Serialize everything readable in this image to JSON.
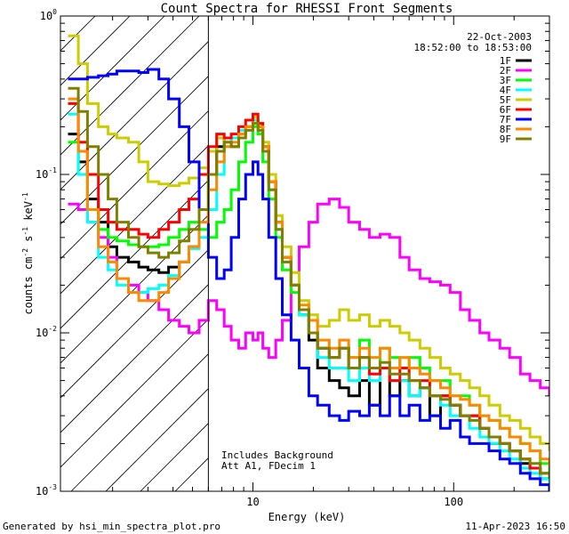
{
  "chart_data": {
    "type": "line",
    "title": "Count Spectra for RHESSI Front Segments",
    "xlabel": "Energy (keV)",
    "ylabel_parts": [
      "counts cm",
      "-2",
      " s",
      "-1",
      " keV",
      "-1"
    ],
    "xscale": "log",
    "yscale": "log",
    "xlim": [
      1.1,
      300
    ],
    "ylim": [
      0.001,
      1.0
    ],
    "x_ticks": [
      {
        "value": 10,
        "label": "10"
      },
      {
        "value": 100,
        "label": "100"
      }
    ],
    "y_ticks": [
      {
        "value": 0.001,
        "base": "10",
        "exp": "-3"
      },
      {
        "value": 0.01,
        "base": "10",
        "exp": "-2"
      },
      {
        "value": 0.1,
        "base": "10",
        "exp": "-1"
      },
      {
        "value": 1.0,
        "base": "10",
        "exp": "0"
      }
    ],
    "attenuator_edge_keV": 6,
    "annotations": {
      "date": "22-Oct-2003",
      "time_range": "18:52:00 to 18:53:00",
      "background_note": "Includes Background",
      "setting_note": "Att A1, FDecim 1"
    },
    "legend_position": "top-right",
    "series": [
      {
        "name": "1F",
        "color": "#000000",
        "x": [
          1.2,
          1.35,
          1.5,
          1.7,
          1.9,
          2.1,
          2.4,
          2.7,
          3.0,
          3.4,
          3.8,
          4.3,
          4.8,
          5.4,
          6.0,
          6.6,
          7.2,
          7.8,
          8.5,
          9.2,
          10,
          10.6,
          11.2,
          12,
          13,
          14,
          15.5,
          17,
          19,
          21,
          24,
          27,
          30,
          34,
          38,
          43,
          48,
          54,
          60,
          68,
          76,
          86,
          96,
          108,
          120,
          135,
          150,
          170,
          190,
          215,
          240,
          270,
          300
        ],
        "values": [
          0.18,
          0.12,
          0.07,
          0.05,
          0.035,
          0.03,
          0.028,
          0.026,
          0.025,
          0.024,
          0.026,
          0.028,
          0.035,
          0.06,
          0.1,
          0.15,
          0.17,
          0.15,
          0.18,
          0.2,
          0.22,
          0.2,
          0.15,
          0.09,
          0.05,
          0.03,
          0.02,
          0.013,
          0.009,
          0.006,
          0.005,
          0.0045,
          0.004,
          0.005,
          0.0035,
          0.006,
          0.004,
          0.005,
          0.004,
          0.0045,
          0.003,
          0.004,
          0.0035,
          0.003,
          0.003,
          0.0025,
          0.002,
          0.002,
          0.0018,
          0.0015,
          0.0014,
          0.0012,
          0.0011
        ]
      },
      {
        "name": "2F",
        "color": "#ff00ff",
        "x": [
          1.2,
          1.35,
          1.5,
          1.7,
          1.9,
          2.1,
          2.4,
          2.7,
          3.0,
          3.4,
          3.8,
          4.3,
          4.8,
          5.4,
          6.0,
          6.6,
          7.2,
          7.8,
          8.5,
          9.2,
          10,
          10.6,
          11.2,
          12,
          13,
          14,
          15.5,
          17,
          19,
          21,
          24,
          27,
          30,
          34,
          38,
          43,
          48,
          54,
          60,
          68,
          76,
          86,
          96,
          108,
          120,
          135,
          150,
          170,
          190,
          215,
          240,
          270,
          300
        ],
        "values": [
          0.065,
          0.06,
          0.05,
          0.04,
          0.03,
          0.022,
          0.02,
          0.018,
          0.016,
          0.014,
          0.012,
          0.011,
          0.01,
          0.012,
          0.016,
          0.014,
          0.011,
          0.009,
          0.008,
          0.01,
          0.009,
          0.01,
          0.008,
          0.007,
          0.009,
          0.012,
          0.02,
          0.035,
          0.05,
          0.065,
          0.07,
          0.062,
          0.05,
          0.045,
          0.04,
          0.042,
          0.04,
          0.03,
          0.025,
          0.022,
          0.021,
          0.02,
          0.018,
          0.014,
          0.012,
          0.01,
          0.009,
          0.008,
          0.007,
          0.0055,
          0.005,
          0.0045,
          0.004
        ]
      },
      {
        "name": "3F",
        "color": "#00ff00",
        "x": [
          1.2,
          1.35,
          1.5,
          1.7,
          1.9,
          2.1,
          2.4,
          2.7,
          3.0,
          3.4,
          3.8,
          4.3,
          4.8,
          5.4,
          6.0,
          6.6,
          7.2,
          7.8,
          8.5,
          9.2,
          10,
          10.6,
          11.2,
          12,
          13,
          14,
          15.5,
          17,
          19,
          21,
          24,
          27,
          30,
          34,
          38,
          43,
          48,
          54,
          60,
          68,
          76,
          86,
          96,
          108,
          120,
          135,
          150,
          170,
          190,
          215,
          240,
          270,
          300
        ],
        "values": [
          0.16,
          0.1,
          0.06,
          0.045,
          0.04,
          0.038,
          0.036,
          0.035,
          0.035,
          0.036,
          0.04,
          0.045,
          0.05,
          0.045,
          0.04,
          0.05,
          0.06,
          0.08,
          0.12,
          0.16,
          0.2,
          0.18,
          0.12,
          0.07,
          0.04,
          0.025,
          0.018,
          0.013,
          0.01,
          0.008,
          0.007,
          0.008,
          0.007,
          0.009,
          0.006,
          0.008,
          0.007,
          0.006,
          0.007,
          0.006,
          0.005,
          0.005,
          0.004,
          0.004,
          0.0035,
          0.003,
          0.0028,
          0.0025,
          0.0022,
          0.002,
          0.0018,
          0.0015,
          0.0013
        ]
      },
      {
        "name": "4F",
        "color": "#00ffff",
        "x": [
          1.2,
          1.35,
          1.5,
          1.7,
          1.9,
          2.1,
          2.4,
          2.7,
          3.0,
          3.4,
          3.8,
          4.3,
          4.8,
          5.4,
          6.0,
          6.6,
          7.2,
          7.8,
          8.5,
          9.2,
          10,
          10.6,
          11.2,
          12,
          13,
          14,
          15.5,
          17,
          19,
          21,
          24,
          27,
          30,
          34,
          38,
          43,
          48,
          54,
          60,
          68,
          76,
          86,
          96,
          108,
          120,
          135,
          150,
          170,
          190,
          215,
          240,
          270,
          300
        ],
        "values": [
          0.24,
          0.1,
          0.05,
          0.03,
          0.025,
          0.02,
          0.018,
          0.018,
          0.019,
          0.02,
          0.023,
          0.028,
          0.034,
          0.04,
          0.06,
          0.1,
          0.15,
          0.17,
          0.19,
          0.2,
          0.22,
          0.19,
          0.14,
          0.08,
          0.045,
          0.028,
          0.02,
          0.013,
          0.01,
          0.007,
          0.006,
          0.006,
          0.005,
          0.006,
          0.005,
          0.006,
          0.005,
          0.005,
          0.004,
          0.0045,
          0.004,
          0.0035,
          0.003,
          0.003,
          0.0025,
          0.0022,
          0.002,
          0.0018,
          0.0016,
          0.0014,
          0.0013,
          0.0012,
          0.0011
        ]
      },
      {
        "name": "5F",
        "color": "#cccc00",
        "x": [
          1.2,
          1.35,
          1.5,
          1.7,
          1.9,
          2.1,
          2.4,
          2.7,
          3.0,
          3.4,
          3.8,
          4.3,
          4.8,
          5.4,
          6.0,
          6.6,
          7.2,
          7.8,
          8.5,
          9.2,
          10,
          10.6,
          11.2,
          12,
          13,
          14,
          15.5,
          17,
          19,
          21,
          24,
          27,
          30,
          34,
          38,
          43,
          48,
          54,
          60,
          68,
          76,
          86,
          96,
          108,
          120,
          135,
          150,
          170,
          190,
          215,
          240,
          270,
          300
        ],
        "values": [
          0.75,
          0.5,
          0.28,
          0.2,
          0.18,
          0.17,
          0.16,
          0.12,
          0.09,
          0.087,
          0.085,
          0.088,
          0.095,
          0.11,
          0.14,
          0.17,
          0.16,
          0.15,
          0.18,
          0.2,
          0.23,
          0.21,
          0.16,
          0.1,
          0.055,
          0.035,
          0.024,
          0.016,
          0.013,
          0.011,
          0.012,
          0.014,
          0.012,
          0.013,
          0.011,
          0.012,
          0.011,
          0.01,
          0.009,
          0.008,
          0.007,
          0.006,
          0.0055,
          0.005,
          0.0045,
          0.004,
          0.0035,
          0.003,
          0.0028,
          0.0025,
          0.0022,
          0.002,
          0.0018
        ]
      },
      {
        "name": "6F",
        "color": "#ff0000",
        "x": [
          1.2,
          1.35,
          1.5,
          1.7,
          1.9,
          2.1,
          2.4,
          2.7,
          3.0,
          3.4,
          3.8,
          4.3,
          4.8,
          5.4,
          6.0,
          6.6,
          7.2,
          7.8,
          8.5,
          9.2,
          10,
          10.6,
          11.2,
          12,
          13,
          14,
          15.5,
          17,
          19,
          21,
          24,
          27,
          30,
          34,
          38,
          43,
          48,
          54,
          60,
          68,
          76,
          86,
          96,
          108,
          120,
          135,
          150,
          170,
          190,
          215,
          240,
          270,
          300
        ],
        "values": [
          0.28,
          0.16,
          0.1,
          0.06,
          0.05,
          0.045,
          0.045,
          0.042,
          0.04,
          0.045,
          0.05,
          0.06,
          0.07,
          0.1,
          0.15,
          0.18,
          0.17,
          0.18,
          0.2,
          0.22,
          0.24,
          0.21,
          0.15,
          0.09,
          0.05,
          0.03,
          0.02,
          0.014,
          0.01,
          0.008,
          0.007,
          0.008,
          0.006,
          0.007,
          0.0055,
          0.006,
          0.005,
          0.006,
          0.005,
          0.005,
          0.004,
          0.004,
          0.0035,
          0.003,
          0.003,
          0.0025,
          0.0022,
          0.002,
          0.0018,
          0.0016,
          0.0014,
          0.0013,
          0.0012
        ]
      },
      {
        "name": "7F",
        "color": "#0000ff",
        "x": [
          1.2,
          1.35,
          1.5,
          1.7,
          1.9,
          2.1,
          2.4,
          2.7,
          3.0,
          3.4,
          3.8,
          4.3,
          4.8,
          5.4,
          6.0,
          6.6,
          7.2,
          7.8,
          8.5,
          9.2,
          10,
          10.6,
          11.2,
          12,
          13,
          14,
          15.5,
          17,
          19,
          21,
          24,
          27,
          30,
          34,
          38,
          43,
          48,
          54,
          60,
          68,
          76,
          86,
          96,
          108,
          120,
          135,
          150,
          170,
          190,
          215,
          240,
          270,
          300
        ],
        "values": [
          0.4,
          0.4,
          0.41,
          0.42,
          0.43,
          0.45,
          0.45,
          0.44,
          0.46,
          0.4,
          0.3,
          0.2,
          0.12,
          0.06,
          0.03,
          0.022,
          0.025,
          0.04,
          0.07,
          0.1,
          0.12,
          0.1,
          0.07,
          0.04,
          0.022,
          0.013,
          0.009,
          0.006,
          0.004,
          0.0035,
          0.003,
          0.0028,
          0.0032,
          0.003,
          0.0035,
          0.003,
          0.004,
          0.003,
          0.0035,
          0.0028,
          0.003,
          0.0025,
          0.0028,
          0.0022,
          0.002,
          0.002,
          0.0018,
          0.0016,
          0.0015,
          0.0013,
          0.0012,
          0.0011,
          0.001
        ]
      },
      {
        "name": "8F",
        "color": "#ff8800",
        "x": [
          1.2,
          1.35,
          1.5,
          1.7,
          1.9,
          2.1,
          2.4,
          2.7,
          3.0,
          3.4,
          3.8,
          4.3,
          4.8,
          5.4,
          6.0,
          6.6,
          7.2,
          7.8,
          8.5,
          9.2,
          10,
          10.6,
          11.2,
          12,
          13,
          14,
          15.5,
          17,
          19,
          21,
          24,
          27,
          30,
          34,
          38,
          43,
          48,
          54,
          60,
          68,
          76,
          86,
          96,
          108,
          120,
          135,
          150,
          170,
          190,
          215,
          240,
          270,
          300
        ],
        "values": [
          0.3,
          0.14,
          0.06,
          0.035,
          0.028,
          0.022,
          0.018,
          0.016,
          0.016,
          0.018,
          0.022,
          0.028,
          0.035,
          0.05,
          0.08,
          0.12,
          0.15,
          0.16,
          0.18,
          0.2,
          0.21,
          0.2,
          0.15,
          0.09,
          0.05,
          0.03,
          0.02,
          0.015,
          0.012,
          0.009,
          0.008,
          0.009,
          0.007,
          0.008,
          0.007,
          0.008,
          0.006,
          0.007,
          0.006,
          0.0055,
          0.005,
          0.0045,
          0.004,
          0.0038,
          0.0035,
          0.003,
          0.0028,
          0.0025,
          0.0022,
          0.002,
          0.0018,
          0.0016,
          0.0014
        ]
      },
      {
        "name": "9F",
        "color": "#808000",
        "x": [
          1.2,
          1.35,
          1.5,
          1.7,
          1.9,
          2.1,
          2.4,
          2.7,
          3.0,
          3.4,
          3.8,
          4.3,
          4.8,
          5.4,
          6.0,
          6.6,
          7.2,
          7.8,
          8.5,
          9.2,
          10,
          10.6,
          11.2,
          12,
          13,
          14,
          15.5,
          17,
          19,
          21,
          24,
          27,
          30,
          34,
          38,
          43,
          48,
          54,
          60,
          68,
          76,
          86,
          96,
          108,
          120,
          135,
          150,
          170,
          190,
          215,
          240,
          270,
          300
        ],
        "values": [
          0.35,
          0.25,
          0.15,
          0.1,
          0.07,
          0.05,
          0.04,
          0.035,
          0.032,
          0.03,
          0.032,
          0.038,
          0.045,
          0.06,
          0.1,
          0.14,
          0.16,
          0.15,
          0.17,
          0.19,
          0.21,
          0.19,
          0.14,
          0.08,
          0.045,
          0.028,
          0.02,
          0.014,
          0.01,
          0.008,
          0.007,
          0.008,
          0.006,
          0.007,
          0.006,
          0.0065,
          0.0055,
          0.0055,
          0.005,
          0.0045,
          0.004,
          0.0038,
          0.0035,
          0.003,
          0.0028,
          0.0025,
          0.0022,
          0.002,
          0.0018,
          0.0016,
          0.0015,
          0.0013,
          0.0012
        ]
      }
    ]
  },
  "footer": {
    "generated_by": "Generated by hsi_min_spectra_plot.pro",
    "timestamp": "11-Apr-2023 16:50"
  }
}
